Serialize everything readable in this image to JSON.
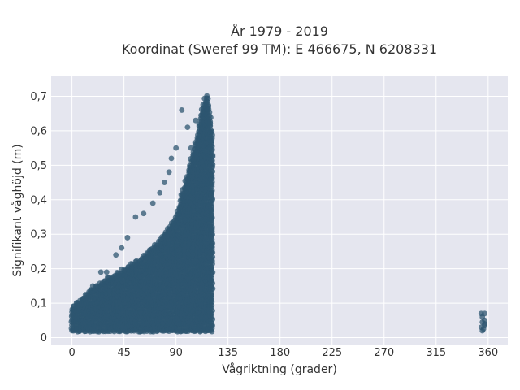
{
  "chart_data": {
    "type": "scatter",
    "title_line1": "År 1979 - 2019",
    "title_line2": "Koordinat (Sweref 99 TM): E 466675, N 6208331",
    "xlabel": "Vågriktning (grader)",
    "ylabel": "Signifikant våghöjd (m)",
    "xlim": [
      -18,
      377
    ],
    "ylim": [
      -0.02,
      0.76
    ],
    "xticks": [
      0,
      45,
      90,
      135,
      180,
      225,
      270,
      315,
      360
    ],
    "xtick_labels": [
      "0",
      "45",
      "90",
      "135",
      "180",
      "225",
      "270",
      "315",
      "360"
    ],
    "yticks": [
      0,
      0.1,
      0.2,
      0.3,
      0.4,
      0.5,
      0.6,
      0.7
    ],
    "ytick_labels": [
      "0",
      "0,1",
      "0,2",
      "0,3",
      "0,4",
      "0,5",
      "0,6",
      "0,7"
    ],
    "grid": true,
    "marker_color": "#2e5670",
    "background_color": "#e5e6ef",
    "cluster_upper_envelope": {
      "x": [
        0,
        10,
        20,
        30,
        45,
        60,
        75,
        90,
        100,
        108,
        113,
        117,
        120,
        122
      ],
      "y": [
        0.09,
        0.12,
        0.15,
        0.17,
        0.2,
        0.23,
        0.28,
        0.35,
        0.48,
        0.58,
        0.67,
        0.71,
        0.64,
        0.58
      ]
    },
    "cluster_lower_y": 0.02,
    "cluster_dense_until_x": 122,
    "outlier_points": [
      {
        "x": 95,
        "y": 0.66
      },
      {
        "x": 90,
        "y": 0.55
      },
      {
        "x": 84,
        "y": 0.48
      },
      {
        "x": 80,
        "y": 0.45
      },
      {
        "x": 76,
        "y": 0.42
      },
      {
        "x": 70,
        "y": 0.39
      },
      {
        "x": 62,
        "y": 0.36
      },
      {
        "x": 55,
        "y": 0.35
      },
      {
        "x": 48,
        "y": 0.29
      },
      {
        "x": 43,
        "y": 0.26
      },
      {
        "x": 38,
        "y": 0.24
      },
      {
        "x": 30,
        "y": 0.19
      },
      {
        "x": 25,
        "y": 0.19
      },
      {
        "x": 18,
        "y": 0.15
      },
      {
        "x": 100,
        "y": 0.61
      },
      {
        "x": 103,
        "y": 0.55
      },
      {
        "x": 86,
        "y": 0.52
      },
      {
        "x": 107,
        "y": 0.63
      }
    ],
    "far_cluster": [
      {
        "x": 354,
        "y": 0.07
      },
      {
        "x": 357,
        "y": 0.07
      },
      {
        "x": 355,
        "y": 0.06
      },
      {
        "x": 357,
        "y": 0.05
      },
      {
        "x": 355,
        "y": 0.045
      },
      {
        "x": 357,
        "y": 0.04
      },
      {
        "x": 354,
        "y": 0.03
      },
      {
        "x": 356,
        "y": 0.025
      },
      {
        "x": 355,
        "y": 0.02
      },
      {
        "x": 357,
        "y": 0.035
      }
    ]
  }
}
